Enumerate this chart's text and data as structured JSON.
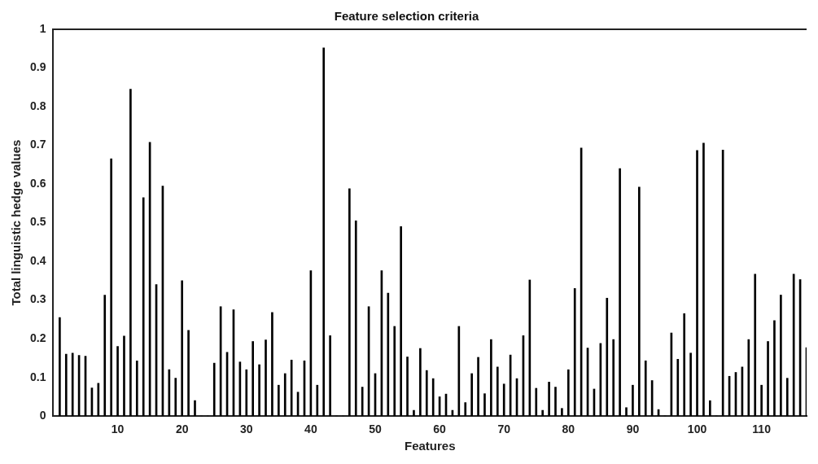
{
  "chart_data": {
    "type": "bar",
    "title": "Feature selection criteria",
    "xlabel": "Features",
    "ylabel": "Total linguistic hedge values",
    "x": [
      1,
      2,
      3,
      4,
      5,
      6,
      7,
      8,
      9,
      10,
      11,
      12,
      13,
      14,
      15,
      16,
      17,
      18,
      19,
      20,
      21,
      22,
      23,
      24,
      25,
      26,
      27,
      28,
      29,
      30,
      31,
      32,
      33,
      34,
      35,
      36,
      37,
      38,
      39,
      40,
      41,
      42,
      43,
      44,
      45,
      46,
      47,
      48,
      49,
      50,
      51,
      52,
      53,
      54,
      55,
      56,
      57,
      58,
      59,
      60,
      61,
      62,
      63,
      64,
      65,
      66,
      67,
      68,
      69,
      70,
      71,
      72,
      73,
      74,
      75,
      76,
      77,
      78,
      79,
      80,
      81,
      82,
      83,
      84,
      85,
      86,
      87,
      88,
      89,
      90,
      91,
      92,
      93,
      94,
      95,
      96,
      97,
      98,
      99,
      100,
      101,
      102,
      103,
      104,
      105,
      106,
      107,
      108,
      109,
      110,
      111,
      112,
      113,
      114,
      115,
      116,
      117
    ],
    "values": [
      0.255,
      0.16,
      0.163,
      0.157,
      0.155,
      0.073,
      0.085,
      0.313,
      0.665,
      0.18,
      0.207,
      0.845,
      0.143,
      0.565,
      0.708,
      0.34,
      0.595,
      0.12,
      0.098,
      0.35,
      0.222,
      0.04,
      0,
      0,
      0.137,
      0.283,
      0.165,
      0.275,
      0.14,
      0.12,
      0.193,
      0.133,
      0.197,
      0.268,
      0.08,
      0.11,
      0.145,
      0.062,
      0.143,
      0.376,
      0.08,
      0.952,
      0.208,
      0,
      0,
      0.588,
      0.505,
      0.075,
      0.283,
      0.11,
      0.376,
      0.318,
      0.232,
      0.49,
      0.153,
      0.015,
      0.175,
      0.118,
      0.097,
      0.05,
      0.057,
      0.015,
      0.232,
      0.035,
      0.11,
      0.152,
      0.058,
      0.198,
      0.127,
      0.083,
      0.158,
      0.097,
      0.208,
      0.352,
      0.072,
      0.015,
      0.088,
      0.075,
      0.02,
      0.12,
      0.33,
      0.693,
      0.176,
      0.07,
      0.188,
      0.305,
      0.198,
      0.64,
      0.022,
      0.08,
      0.592,
      0.143,
      0.092,
      0.017,
      0,
      0.215,
      0.147,
      0.265,
      0.163,
      0.687,
      0.706,
      0.04,
      0,
      0.688,
      0.103,
      0.113,
      0.127,
      0.198,
      0.367,
      0.08,
      0.193,
      0.247,
      0.313,
      0.098,
      0.367,
      0.353,
      0.177
    ],
    "color": "#000000",
    "xlim": [
      0,
      117
    ],
    "xticks": [
      10,
      20,
      30,
      40,
      50,
      60,
      70,
      80,
      90,
      100,
      110
    ],
    "ylim": [
      0,
      1
    ],
    "yticks": [
      0,
      0.1,
      0.2,
      0.3,
      0.4,
      0.5,
      0.6,
      0.7,
      0.8,
      0.9,
      1
    ],
    "grid": false,
    "legend": false
  }
}
